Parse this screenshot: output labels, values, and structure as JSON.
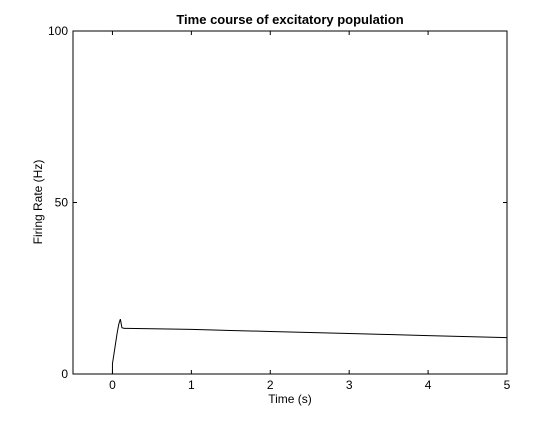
{
  "chart_data": {
    "type": "line",
    "title": "Time course of excitatory population",
    "xlabel": "Time (s)",
    "ylabel": "Firing Rate (Hz)",
    "xlim": [
      -0.5,
      5
    ],
    "ylim": [
      0,
      100
    ],
    "xticks": [
      0,
      1,
      2,
      3,
      4,
      5
    ],
    "yticks": [
      0,
      50,
      100
    ],
    "grid": false,
    "line_color": "#000000",
    "series": [
      {
        "x": [
          -0.5,
          0.0,
          0.0,
          0.02,
          0.04,
          0.06,
          0.08,
          0.1,
          0.12,
          0.15,
          0.5,
          1.0,
          1.5,
          2.0,
          2.5,
          3.0,
          3.5,
          4.0,
          4.5,
          5.0
        ],
        "y": [
          0.0,
          0.0,
          3.0,
          6.0,
          9.0,
          12.0,
          14.5,
          16.0,
          13.5,
          13.3,
          13.2,
          13.0,
          12.7,
          12.4,
          12.1,
          11.8,
          11.5,
          11.2,
          10.9,
          10.6
        ]
      }
    ]
  }
}
